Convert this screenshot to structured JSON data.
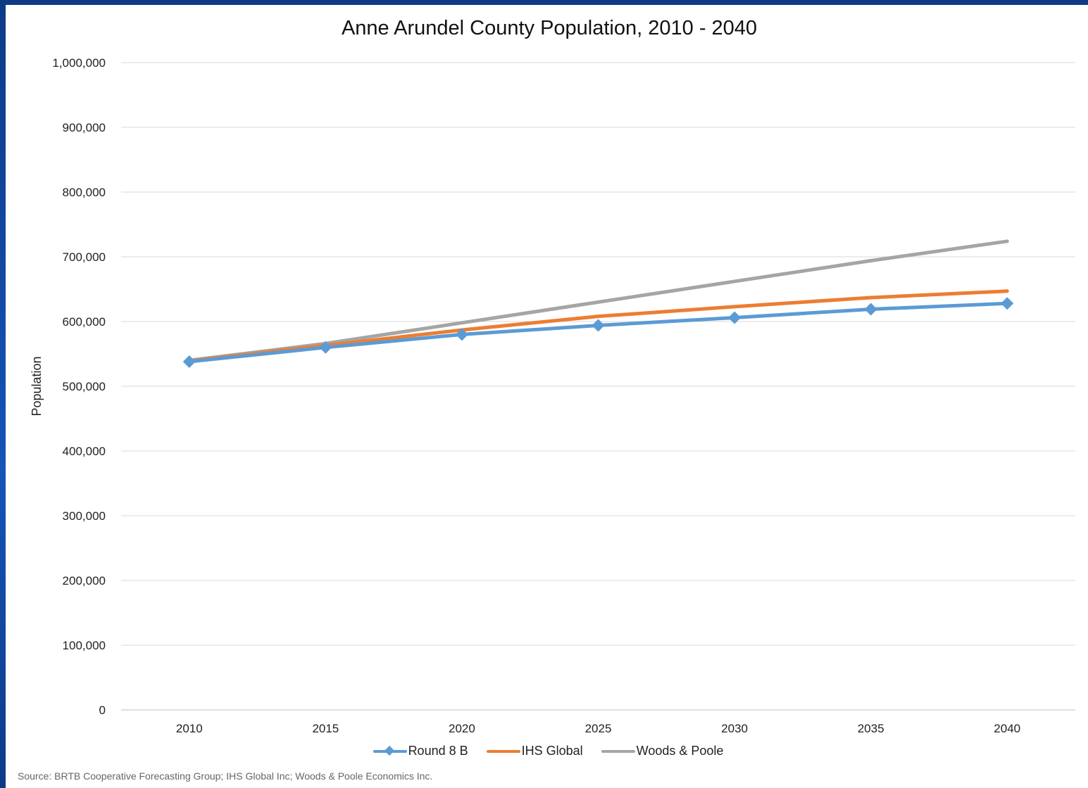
{
  "colors": {
    "round8b": "#5b9bd5",
    "ihs": "#ed7d31",
    "woods": "#a5a5a5",
    "grid": "#d9d9d9",
    "border": "#0d3b86"
  },
  "chart_data": {
    "type": "line",
    "title": "Anne Arundel County Population, 2010 - 2040",
    "ylabel": "Population",
    "xlabel": "",
    "categories": [
      "2010",
      "2015",
      "2020",
      "2025",
      "2030",
      "2035",
      "2040"
    ],
    "y_ticks": [
      "0",
      "100,000",
      "200,000",
      "300,000",
      "400,000",
      "500,000",
      "600,000",
      "700,000",
      "800,000",
      "900,000",
      "1,000,000"
    ],
    "ylim": [
      0,
      1000000
    ],
    "grid": true,
    "legend_position": "bottom",
    "series": [
      {
        "name": "Round 8 B",
        "values": [
          538000,
          560000,
          580000,
          594000,
          606000,
          619000,
          628000
        ],
        "marker": "diamond"
      },
      {
        "name": "IHS Global",
        "values": [
          539000,
          563000,
          587000,
          608000,
          623000,
          637000,
          647000
        ],
        "marker": "none"
      },
      {
        "name": "Woods & Poole",
        "values": [
          540000,
          566000,
          598000,
          630000,
          662000,
          694000,
          724000
        ],
        "marker": "none"
      }
    ]
  },
  "source": "Source: BRTB Cooperative Forecasting Group; IHS Global Inc; Woods & Poole Economics Inc."
}
